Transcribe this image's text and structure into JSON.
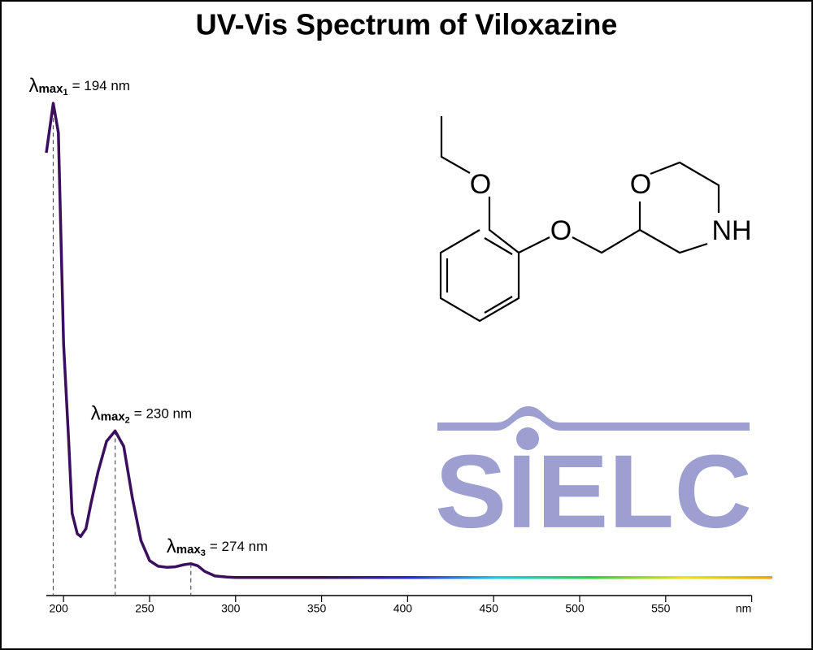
{
  "chart_data": {
    "type": "line",
    "title": "UV-Vis Spectrum of Viloxazine",
    "x": [
      190,
      194,
      197,
      200,
      203,
      205,
      208,
      210,
      213,
      216,
      220,
      225,
      230,
      235,
      240,
      245,
      250,
      255,
      260,
      265,
      270,
      274,
      278,
      282,
      288,
      295,
      300,
      350,
      400,
      450,
      500,
      550,
      600,
      612
    ],
    "series": [
      {
        "color": "#3b0f5e",
        "values": [
          0.861,
          0.957,
          0.9,
          0.49,
          0.3,
          0.16,
          0.12,
          0.115,
          0.13,
          0.18,
          0.24,
          0.3,
          0.32,
          0.29,
          0.19,
          0.107,
          0.068,
          0.057,
          0.055,
          0.056,
          0.06,
          0.062,
          0.058,
          0.047,
          0.038,
          0.036,
          0.035,
          0.035,
          0.035,
          0.035,
          0.035,
          0.035,
          0.035,
          0.035
        ]
      }
    ],
    "xlim": [
      190,
      612
    ],
    "ylim": [
      0,
      1
    ],
    "xticks": [
      200,
      250,
      300,
      350,
      400,
      450,
      500,
      550,
      {
        "value": 600,
        "label": "nm"
      }
    ],
    "annotations": [
      {
        "symbol": "λ",
        "sub": "max",
        "index": "1",
        "label": "= 194 nm",
        "x": 194,
        "y": 0.957
      },
      {
        "symbol": "λ",
        "sub": "max",
        "index": "2",
        "label": "= 230 nm",
        "x": 230,
        "y": 0.32
      },
      {
        "symbol": "λ",
        "sub": "max",
        "index": "3",
        "label": "= 274 nm",
        "x": 274,
        "y": 0.062
      }
    ],
    "structure": {
      "atoms": [
        "O",
        "O",
        "O",
        "NH"
      ]
    },
    "watermark": "SIELC"
  }
}
